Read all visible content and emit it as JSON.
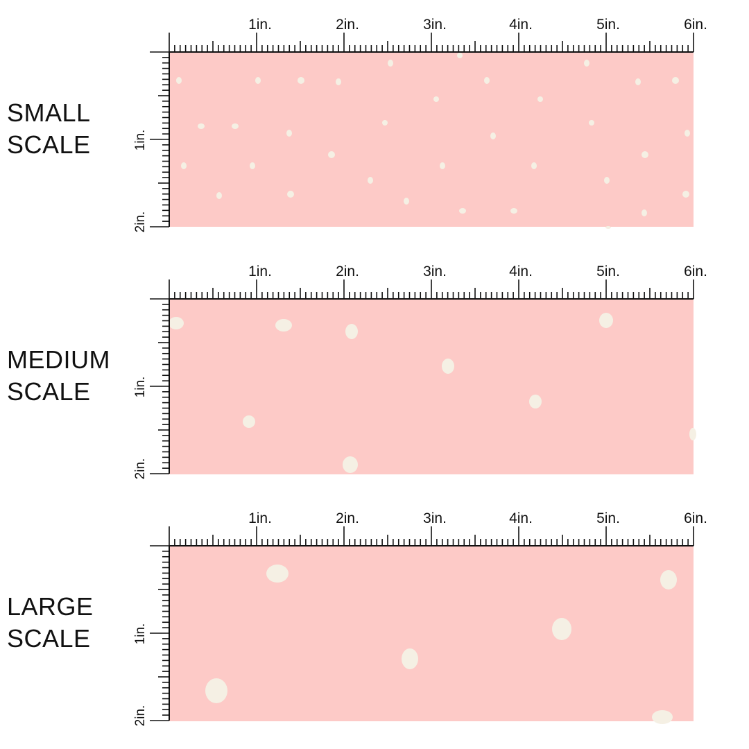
{
  "colors": {
    "fabric": "#fdcac7",
    "dot": "#f5f0e4",
    "ink": "#111111"
  },
  "ruler": {
    "horizontal_labels": [
      "1in.",
      "2in.",
      "3in.",
      "4in.",
      "5in.",
      "6in."
    ],
    "vertical_labels": [
      "1in.",
      "2in."
    ]
  },
  "sections": [
    {
      "id": "small",
      "label_line1": "SMALL",
      "label_line2": "SCALE"
    },
    {
      "id": "medium",
      "label_line1": "MEDIUM",
      "label_line2": "SCALE"
    },
    {
      "id": "large",
      "label_line1": "LARGE",
      "label_line2": "SCALE"
    }
  ]
}
